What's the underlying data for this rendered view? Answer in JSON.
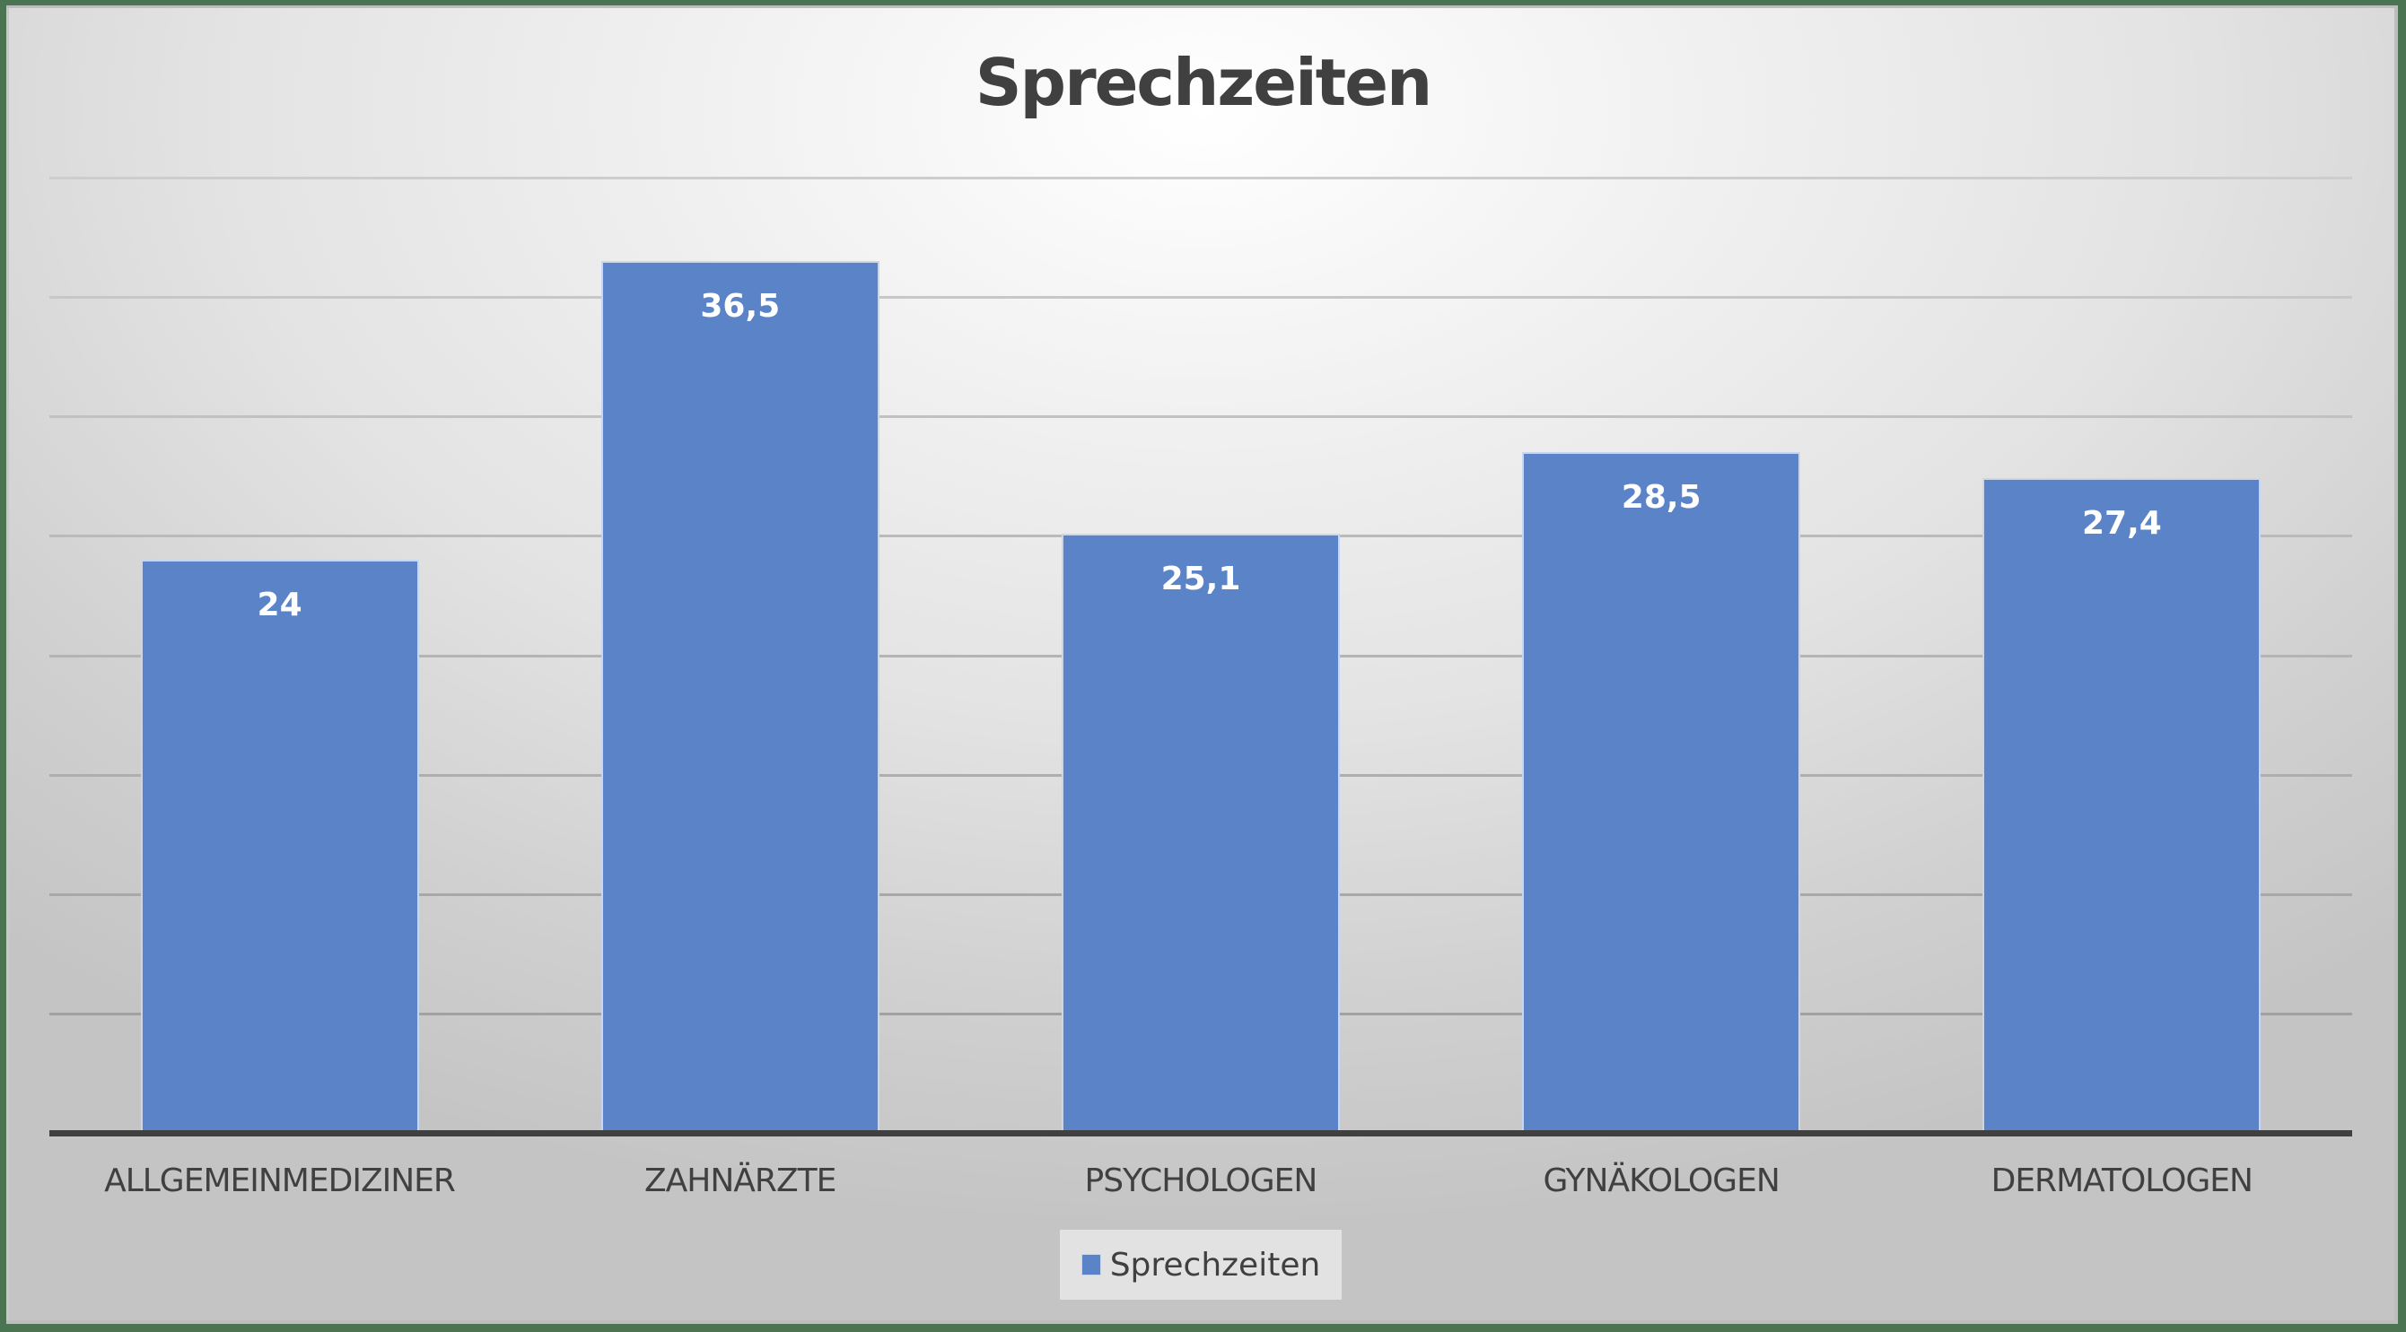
{
  "chart": {
    "title": "Sprechzeiten",
    "legend": {
      "label": "Sprechzeiten",
      "color": "#5b83c8"
    },
    "colors": {
      "bar": "#5b83c8",
      "axis": "#404040",
      "frame": "#4b7452"
    },
    "bars": [
      {
        "category": "ALLGEMEINMEDIZINER",
        "value": 24,
        "label": "24"
      },
      {
        "category": "ZAHNÄRZTE",
        "value": 36.5,
        "label": "36,5"
      },
      {
        "category": "PSYCHOLOGEN",
        "value": 25.1,
        "label": "25,1"
      },
      {
        "category": "GYNÄKOLOGEN",
        "value": 28.5,
        "label": "28,5"
      },
      {
        "category": "DERMATOLOGEN",
        "value": 27.4,
        "label": "27,4"
      }
    ]
  },
  "chart_data": {
    "type": "bar",
    "title": "Sprechzeiten",
    "categories": [
      "ALLGEMEINMEDIZINER",
      "ZAHNÄRZTE",
      "PSYCHOLOGEN",
      "GYNÄKOLOGEN",
      "DERMATOLOGEN"
    ],
    "series": [
      {
        "name": "Sprechzeiten",
        "values": [
          24,
          36.5,
          25.1,
          28.5,
          27.4
        ]
      }
    ],
    "values": [
      24,
      36.5,
      25.1,
      28.5,
      27.4
    ],
    "xlabel": "",
    "ylabel": "",
    "ylim": [
      0,
      40
    ],
    "y_gridline_step": 5,
    "grid": true,
    "y_axis_labels_visible": false,
    "data_labels": [
      "24",
      "36,5",
      "25,1",
      "28,5",
      "27,4"
    ],
    "legend": {
      "entries": [
        "Sprechzeiten"
      ],
      "position": "bottom"
    }
  }
}
